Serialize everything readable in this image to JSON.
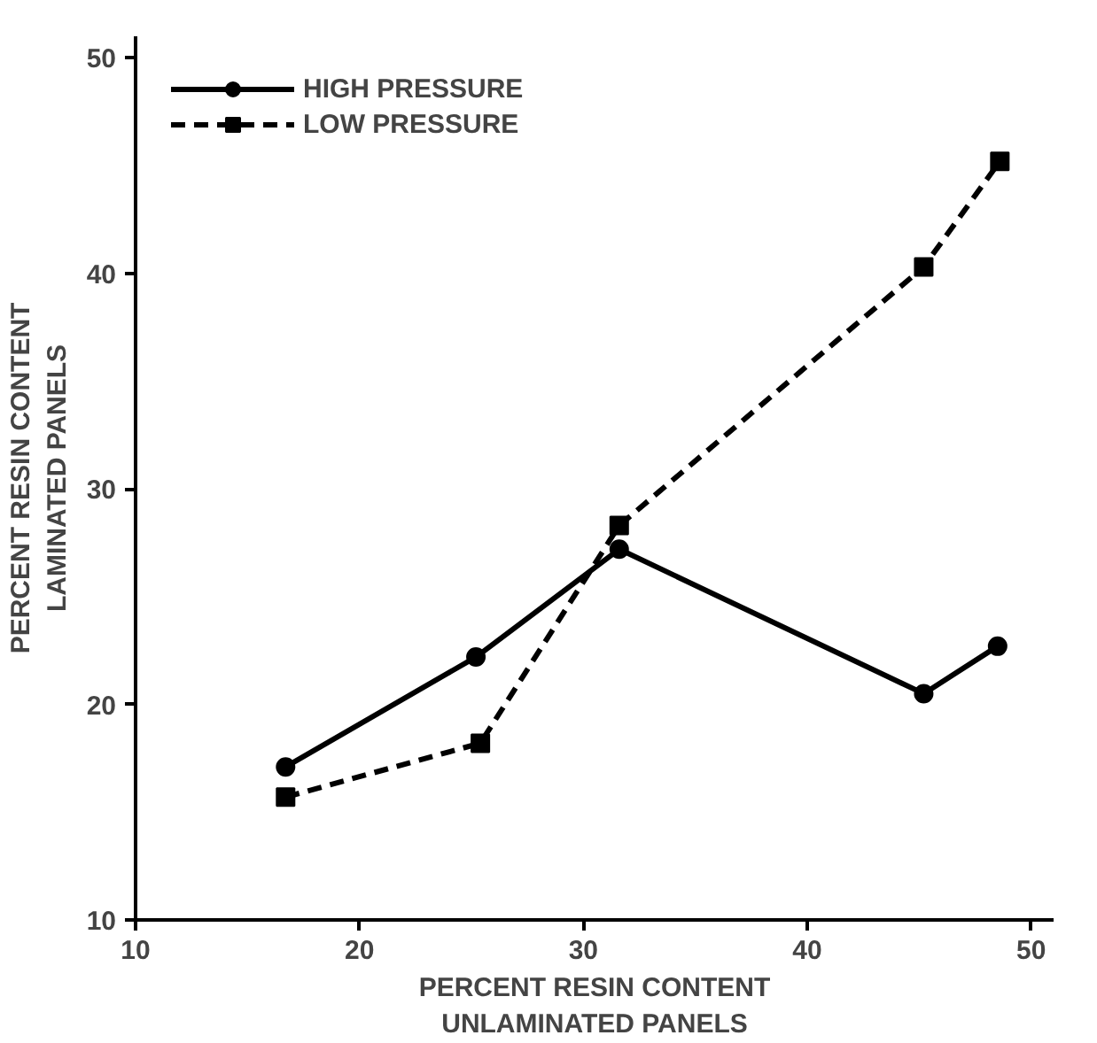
{
  "chart_data": {
    "type": "line",
    "xlabel": "PERCENT RESIN CONTENT\nUNLAMINATED PANELS",
    "ylabel": "PERCENT RESIN CONTENT\nLAMINATED PANELS",
    "xlim": [
      10,
      51
    ],
    "ylim": [
      10,
      51
    ],
    "xticks": [
      10,
      20,
      30,
      40,
      50
    ],
    "yticks": [
      10,
      20,
      30,
      40,
      50
    ],
    "grid": false,
    "legend": "top left",
    "series": [
      {
        "name": "HIGH PRESSURE",
        "color": "#000000",
        "marker": "circle",
        "line_style": "solid",
        "x": [
          16.7,
          25.2,
          31.6,
          45.2,
          48.5
        ],
        "values": [
          17.1,
          22.2,
          27.2,
          20.5,
          22.7
        ]
      },
      {
        "name": "LOW PRESSURE",
        "color": "#000000",
        "marker": "square",
        "line_style": "dashed",
        "x": [
          16.7,
          25.4,
          31.6,
          45.2,
          48.6
        ],
        "values": [
          15.7,
          18.2,
          28.3,
          40.3,
          45.2
        ]
      }
    ]
  }
}
